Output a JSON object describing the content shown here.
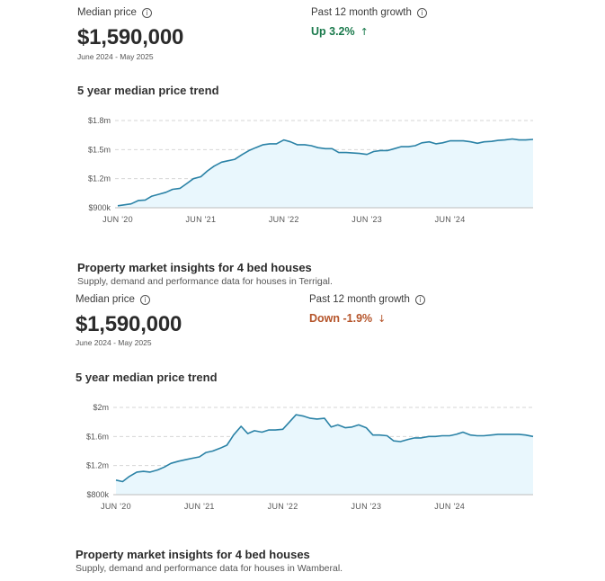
{
  "colors": {
    "line": "#2a82a6",
    "fill": "#e9f7fd",
    "grid": "#d6d6d6",
    "up": "#1a7a4c",
    "down": "#b5542a"
  },
  "sections": [
    {
      "median_label": "Median price",
      "price": "$1,590,000",
      "period": "June 2024 - May 2025",
      "growth_label": "Past 12 month growth",
      "growth_text": "Up 3.2%",
      "growth_arrow": "↑",
      "trend_title": "5 year median price trend",
      "insights_title": "Property market insights for 4 bed houses",
      "insights_sub": "Supply, demand and performance data for houses in Terrigal."
    },
    {
      "median_label": "Median price",
      "price": "$1,590,000",
      "period": "June 2024 - May 2025",
      "growth_label": "Past 12 month growth",
      "growth_text": "Down -1.9%",
      "growth_arrow": "↓",
      "trend_title": "5 year median price trend",
      "insights_title": "Property market insights for 4 bed houses",
      "insights_sub": "Supply, demand and performance data for houses in Wamberal."
    }
  ],
  "chart_data": [
    {
      "type": "area",
      "title": "5 year median price trend",
      "xlim": [
        2020.42,
        2025.42
      ],
      "ylim": [
        900000,
        1800000
      ],
      "y_ticks": [
        {
          "value": 1800000,
          "label": "$1.8m"
        },
        {
          "value": 1500000,
          "label": "$1.5m"
        },
        {
          "value": 1200000,
          "label": "$1.2m"
        },
        {
          "value": 900000,
          "label": "$900k"
        }
      ],
      "x_ticks": [
        {
          "value": 2020.42,
          "label": "JUN '20"
        },
        {
          "value": 2021.42,
          "label": "JUN '21"
        },
        {
          "value": 2022.42,
          "label": "JUN '22"
        },
        {
          "value": 2023.42,
          "label": "JUN '23"
        },
        {
          "value": 2024.42,
          "label": "JUN '24"
        }
      ],
      "grid": true,
      "series": [
        {
          "x": [
            2020.42,
            2020.58,
            2020.67,
            2020.75,
            2020.83,
            2020.92,
            2021.0,
            2021.08,
            2021.17,
            2021.25,
            2021.33,
            2021.42,
            2021.5,
            2021.58,
            2021.67,
            2021.75,
            2021.83,
            2021.92,
            2022.0,
            2022.08,
            2022.17,
            2022.25,
            2022.33,
            2022.42,
            2022.5,
            2022.58,
            2022.67,
            2022.75,
            2022.83,
            2022.92,
            2023.0,
            2023.08,
            2023.17,
            2023.25,
            2023.33,
            2023.42,
            2023.5,
            2023.58,
            2023.67,
            2023.75,
            2023.83,
            2023.92,
            2024.0,
            2024.08,
            2024.17,
            2024.25,
            2024.33,
            2024.42,
            2024.5,
            2024.58,
            2024.67,
            2024.75,
            2024.83,
            2024.92,
            2025.0,
            2025.08,
            2025.17,
            2025.25,
            2025.33,
            2025.42
          ],
          "values": [
            920000,
            940000,
            975000,
            980000,
            1020000,
            1040000,
            1060000,
            1090000,
            1100000,
            1150000,
            1200000,
            1220000,
            1280000,
            1330000,
            1370000,
            1385000,
            1400000,
            1450000,
            1490000,
            1520000,
            1550000,
            1560000,
            1560000,
            1600000,
            1580000,
            1550000,
            1550000,
            1540000,
            1520000,
            1510000,
            1510000,
            1470000,
            1470000,
            1465000,
            1460000,
            1450000,
            1480000,
            1490000,
            1490000,
            1510000,
            1530000,
            1530000,
            1540000,
            1570000,
            1580000,
            1560000,
            1570000,
            1590000,
            1590000,
            1590000,
            1580000,
            1565000,
            1580000,
            1585000,
            1595000,
            1600000,
            1610000,
            1600000,
            1600000,
            1605000
          ]
        }
      ]
    },
    {
      "type": "area",
      "title": "5 year median price trend",
      "xlim": [
        2020.42,
        2025.42
      ],
      "ylim": [
        800000,
        2000000
      ],
      "y_ticks": [
        {
          "value": 2000000,
          "label": "$2m"
        },
        {
          "value": 1600000,
          "label": "$1.6m"
        },
        {
          "value": 1200000,
          "label": "$1.2m"
        },
        {
          "value": 800000,
          "label": "$800k"
        }
      ],
      "x_ticks": [
        {
          "value": 2020.42,
          "label": "JUN '20"
        },
        {
          "value": 2021.42,
          "label": "JUN '21"
        },
        {
          "value": 2022.42,
          "label": "JUN '22"
        },
        {
          "value": 2023.42,
          "label": "JUN '23"
        },
        {
          "value": 2024.42,
          "label": "JUN '24"
        }
      ],
      "grid": true,
      "series": [
        {
          "x": [
            2020.42,
            2020.5,
            2020.58,
            2020.67,
            2020.75,
            2020.83,
            2020.92,
            2021.0,
            2021.08,
            2021.17,
            2021.25,
            2021.33,
            2021.42,
            2021.5,
            2021.58,
            2021.67,
            2021.75,
            2021.79,
            2021.83,
            2021.92,
            2022.0,
            2022.08,
            2022.17,
            2022.25,
            2022.33,
            2022.42,
            2022.5,
            2022.58,
            2022.67,
            2022.75,
            2022.83,
            2022.92,
            2023.0,
            2023.08,
            2023.17,
            2023.25,
            2023.33,
            2023.42,
            2023.5,
            2023.58,
            2023.67,
            2023.75,
            2023.83,
            2023.92,
            2024.0,
            2024.08,
            2024.17,
            2024.25,
            2024.33,
            2024.42,
            2024.5,
            2024.58,
            2024.67,
            2024.75,
            2024.83,
            2024.92,
            2025.0,
            2025.08,
            2025.17,
            2025.25,
            2025.33,
            2025.42
          ],
          "values": [
            1000000,
            980000,
            1050000,
            1110000,
            1120000,
            1110000,
            1140000,
            1180000,
            1230000,
            1260000,
            1280000,
            1300000,
            1320000,
            1380000,
            1400000,
            1440000,
            1480000,
            1550000,
            1620000,
            1740000,
            1640000,
            1680000,
            1660000,
            1690000,
            1690000,
            1700000,
            1800000,
            1900000,
            1880000,
            1850000,
            1840000,
            1850000,
            1730000,
            1760000,
            1720000,
            1730000,
            1760000,
            1720000,
            1620000,
            1620000,
            1610000,
            1540000,
            1530000,
            1560000,
            1580000,
            1580000,
            1600000,
            1600000,
            1610000,
            1610000,
            1630000,
            1660000,
            1620000,
            1610000,
            1610000,
            1620000,
            1630000,
            1630000,
            1630000,
            1630000,
            1620000,
            1600000
          ]
        }
      ]
    }
  ]
}
